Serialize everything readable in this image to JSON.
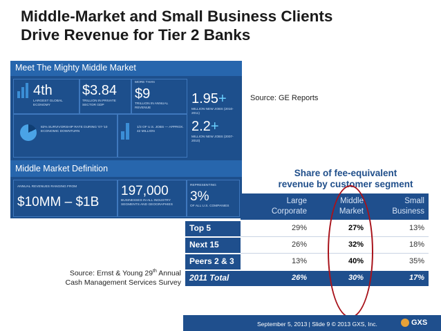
{
  "slide": {
    "title_line1": "Middle-Market and Small Business Clients",
    "title_line2": "Drive Revenue for Tier 2 Banks"
  },
  "infographic": {
    "header": "Meet The Mighty Middle Market",
    "stat1_big": "4th",
    "stat1_small": "LARGEST GLOBAL ECONOMY",
    "stat2_big": "$3.84",
    "stat2_small": "TRILLION IN PRIVATE SECTOR GDP",
    "stat3_top": "MORE THAN",
    "stat3_big": "$9",
    "stat3_small": "TRILLION IN ANNUAL REVENUE",
    "stat4_big": "1.95",
    "stat4_small": "MILLION NEW JOBS (2010-2011)",
    "stat5_small": "82% SURVIVORSHIP RATE DURING '07-'10 ECONOMIC DOWNTURN",
    "stat6_small": "1/3 OF U.S. JOBS — APPROX. 42 MILLION",
    "stat7_big": "2.2",
    "stat7_small": "MILLION NEW JOBS (2007-2010)",
    "plus": "+",
    "header2": "Middle Market Definition",
    "def1_small": "ANNUAL REVENUES RANGING FROM",
    "def1_big": "$10MM – $1B",
    "def2_big": "197,000",
    "def2_small": "BUSINESSES IN ALL INDUSTRY SEGMENTS AND GEOGRAPHIES",
    "def3_top": "REPRESENTING",
    "def3_big": "3%",
    "def3_small": "OF ALL U.S. COMPANIES"
  },
  "sources": {
    "ge": "Source: GE Reports",
    "ey_line1_pre": "Source: Ernst & Young 29",
    "ey_sup": "th",
    "ey_line1_post": " Annual",
    "ey_line2": "Cash Management Services Survey"
  },
  "chart_title_line1": "Share of fee-equivalent",
  "chart_title_line2": "revenue by customer segment",
  "chart_data": {
    "type": "table",
    "columns": [
      "Large Corporate",
      "Middle Market",
      "Small Business"
    ],
    "col_line1": [
      "Large",
      "Middle",
      "Small"
    ],
    "col_line2": [
      "Corporate",
      "Market",
      "Business"
    ],
    "rows": [
      {
        "label": "Top 5",
        "values": [
          "29%",
          "27%",
          "13%"
        ]
      },
      {
        "label": "Next 15",
        "values": [
          "26%",
          "32%",
          "18%"
        ]
      },
      {
        "label": "Peers 2 & 3",
        "values": [
          "13%",
          "40%",
          "35%"
        ]
      },
      {
        "label": "2011 Total",
        "values": [
          "26%",
          "30%",
          "17%"
        ]
      }
    ],
    "highlighted_column": "Middle Market",
    "colors": {
      "header": "#1f4f8d",
      "row_label": "#1f4f8d",
      "row_bg": "#ffffff",
      "total": "#1f4f8d",
      "highlight_circle": "#a8121a"
    }
  },
  "footer": {
    "text": "September 5, 2013  |  Slide 9    © 2013 GXS, Inc.",
    "logo": "GXS"
  }
}
